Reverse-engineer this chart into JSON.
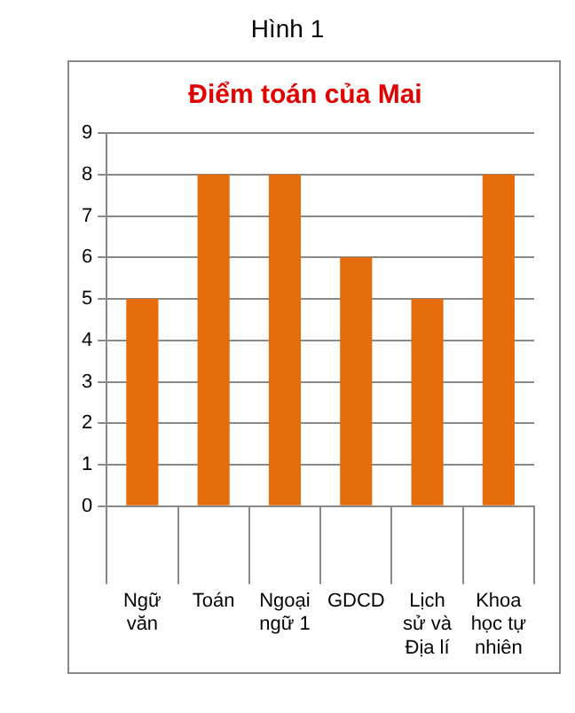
{
  "chart_data": {
    "type": "bar",
    "title": "Điểm toán của Mai",
    "annotations": [
      "Hình 1"
    ],
    "categories": [
      "Ngữ văn",
      "Toán",
      "Ngoại ngữ 1",
      "GDCD",
      "Lịch sử và Địa lí",
      "Khoa học tự nhiên"
    ],
    "values": [
      5,
      8,
      8,
      6,
      5,
      8
    ],
    "color": "#e46c0a",
    "ylim": [
      0,
      9
    ],
    "yticks": [
      0,
      1,
      2,
      3,
      4,
      5,
      6,
      7,
      8,
      9
    ],
    "grid": "y",
    "legend": false
  }
}
